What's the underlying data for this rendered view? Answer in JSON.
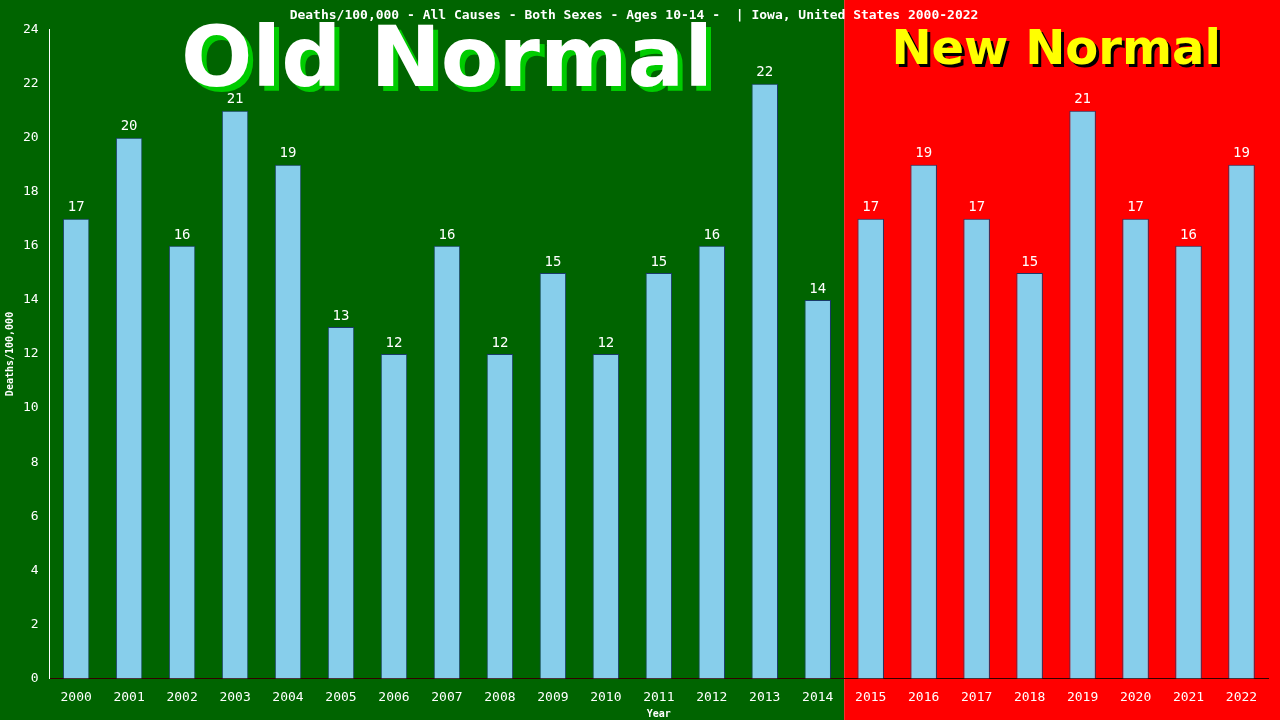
{
  "chart_data": {
    "type": "bar",
    "title": "Deaths/100,000 - All Causes - Both Sexes - Ages 10-14 -  | Iowa, United States 2000-2022",
    "xlabel": "Year",
    "ylabel": "Deaths/100,000",
    "categories": [
      "2000",
      "2001",
      "2002",
      "2003",
      "2004",
      "2005",
      "2006",
      "2007",
      "2008",
      "2009",
      "2010",
      "2011",
      "2012",
      "2013",
      "2014",
      "2015",
      "2016",
      "2017",
      "2018",
      "2019",
      "2020",
      "2021",
      "2022"
    ],
    "values": [
      17,
      20,
      16,
      21,
      19,
      13,
      12,
      16,
      12,
      15,
      12,
      15,
      16,
      22,
      14,
      17,
      19,
      17,
      15,
      21,
      17,
      16,
      19
    ],
    "color": "#87ceeb",
    "ylim": [
      0,
      24
    ],
    "yticks": [
      0,
      2,
      4,
      6,
      8,
      10,
      12,
      14,
      16,
      18,
      20,
      22,
      24
    ],
    "data_labels": true,
    "legend": false,
    "grid": false,
    "bands": [
      {
        "axis": "x",
        "from": "2000",
        "to": "2014",
        "label": "Old Normal",
        "color": "#006400"
      },
      {
        "axis": "x",
        "from": "2015",
        "to": "2022",
        "label": "New Normal",
        "color": "#ff0000"
      }
    ]
  }
}
